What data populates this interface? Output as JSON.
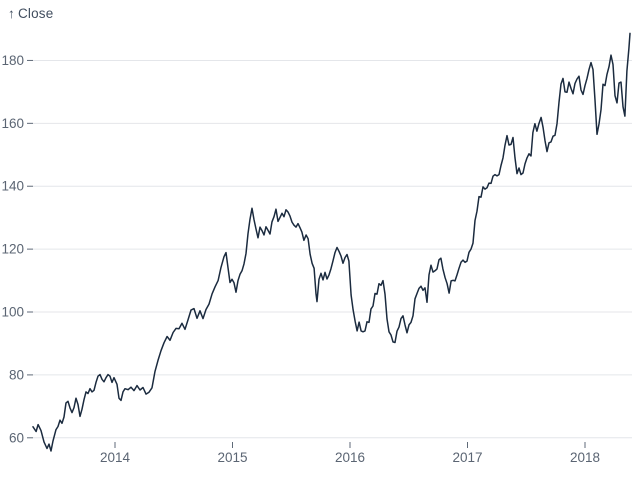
{
  "colors": {
    "background": "#ffffff",
    "line": "#1b2b3f",
    "grid": "#e4e6ea",
    "tick_mark": "#5f6a78",
    "tick_text": "#5b6573",
    "axis_title_text": "#414e5f"
  },
  "chart_data": {
    "type": "line",
    "title": "",
    "ylabel_arrow": "↑",
    "ylabel_text": "Close",
    "series_name": "Close",
    "xlabel": "",
    "legend": "none",
    "grid": "horizontal",
    "xlim": [
      2013.302,
      2018.383
    ],
    "ylim": [
      55.8,
      190.0
    ],
    "x_ticks": [
      2014,
      2015,
      2016,
      2017,
      2018
    ],
    "y_ticks": [
      60,
      80,
      100,
      120,
      140,
      160,
      180
    ],
    "points": [
      [
        2013.302,
        63.5
      ],
      [
        2013.328,
        62.0
      ],
      [
        2013.345,
        64.2
      ],
      [
        2013.37,
        62.3
      ],
      [
        2013.396,
        58.7
      ],
      [
        2013.421,
        56.6
      ],
      [
        2013.438,
        58.0
      ],
      [
        2013.455,
        55.8
      ],
      [
        2013.472,
        59.0
      ],
      [
        2013.498,
        62.6
      ],
      [
        2013.515,
        63.6
      ],
      [
        2013.532,
        65.6
      ],
      [
        2013.549,
        64.6
      ],
      [
        2013.566,
        66.6
      ],
      [
        2013.583,
        71.1
      ],
      [
        2013.6,
        71.6
      ],
      [
        2013.617,
        69.5
      ],
      [
        2013.634,
        68.0
      ],
      [
        2013.651,
        69.6
      ],
      [
        2013.668,
        72.6
      ],
      [
        2013.685,
        70.6
      ],
      [
        2013.702,
        66.8
      ],
      [
        2013.719,
        69.1
      ],
      [
        2013.736,
        72.1
      ],
      [
        2013.753,
        74.6
      ],
      [
        2013.77,
        74.1
      ],
      [
        2013.787,
        75.6
      ],
      [
        2013.804,
        74.6
      ],
      [
        2013.821,
        75.1
      ],
      [
        2013.838,
        77.6
      ],
      [
        2013.855,
        79.6
      ],
      [
        2013.872,
        80.1
      ],
      [
        2013.889,
        78.6
      ],
      [
        2013.906,
        77.8
      ],
      [
        2013.923,
        79.1
      ],
      [
        2013.94,
        80.1
      ],
      [
        2013.957,
        79.6
      ],
      [
        2013.974,
        77.6
      ],
      [
        2013.991,
        79.1
      ],
      [
        2014.017,
        77.0
      ],
      [
        2014.034,
        72.6
      ],
      [
        2014.051,
        71.9
      ],
      [
        2014.068,
        74.6
      ],
      [
        2014.085,
        75.6
      ],
      [
        2014.111,
        75.3
      ],
      [
        2014.136,
        76.1
      ],
      [
        2014.162,
        75.0
      ],
      [
        2014.187,
        76.6
      ],
      [
        2014.213,
        75.2
      ],
      [
        2014.238,
        76.0
      ],
      [
        2014.264,
        73.9
      ],
      [
        2014.289,
        74.5
      ],
      [
        2014.315,
        75.9
      ],
      [
        2014.34,
        81.1
      ],
      [
        2014.366,
        84.6
      ],
      [
        2014.391,
        87.7
      ],
      [
        2014.417,
        90.2
      ],
      [
        2014.443,
        92.2
      ],
      [
        2014.468,
        91.0
      ],
      [
        2014.494,
        93.5
      ],
      [
        2014.519,
        94.8
      ],
      [
        2014.545,
        94.7
      ],
      [
        2014.57,
        96.4
      ],
      [
        2014.596,
        94.5
      ],
      [
        2014.621,
        97.5
      ],
      [
        2014.647,
        100.6
      ],
      [
        2014.672,
        101.1
      ],
      [
        2014.698,
        98.0
      ],
      [
        2014.723,
        100.4
      ],
      [
        2014.749,
        97.9
      ],
      [
        2014.774,
        100.8
      ],
      [
        2014.8,
        102.5
      ],
      [
        2014.826,
        105.8
      ],
      [
        2014.851,
        108.0
      ],
      [
        2014.877,
        110.0
      ],
      [
        2014.902,
        114.2
      ],
      [
        2014.928,
        117.6
      ],
      [
        2014.945,
        118.9
      ],
      [
        2014.962,
        114.1
      ],
      [
        2014.979,
        109.4
      ],
      [
        2014.996,
        110.4
      ],
      [
        2015.013,
        109.3
      ],
      [
        2015.03,
        106.3
      ],
      [
        2015.047,
        110.0
      ],
      [
        2015.064,
        112.0
      ],
      [
        2015.081,
        113.1
      ],
      [
        2015.098,
        115.3
      ],
      [
        2015.115,
        118.6
      ],
      [
        2015.132,
        124.9
      ],
      [
        2015.149,
        129.5
      ],
      [
        2015.166,
        133.0
      ],
      [
        2015.183,
        129.4
      ],
      [
        2015.2,
        126.4
      ],
      [
        2015.217,
        123.6
      ],
      [
        2015.234,
        127.0
      ],
      [
        2015.251,
        125.9
      ],
      [
        2015.268,
        124.5
      ],
      [
        2015.285,
        127.1
      ],
      [
        2015.302,
        126.0
      ],
      [
        2015.319,
        124.8
      ],
      [
        2015.336,
        128.7
      ],
      [
        2015.353,
        130.3
      ],
      [
        2015.37,
        132.7
      ],
      [
        2015.387,
        128.8
      ],
      [
        2015.404,
        130.1
      ],
      [
        2015.421,
        131.4
      ],
      [
        2015.438,
        130.3
      ],
      [
        2015.455,
        132.5
      ],
      [
        2015.472,
        131.8
      ],
      [
        2015.489,
        130.5
      ],
      [
        2015.506,
        128.6
      ],
      [
        2015.523,
        127.6
      ],
      [
        2015.54,
        127.0
      ],
      [
        2015.557,
        128.1
      ],
      [
        2015.574,
        126.8
      ],
      [
        2015.591,
        125.4
      ],
      [
        2015.608,
        122.8
      ],
      [
        2015.626,
        124.5
      ],
      [
        2015.643,
        123.3
      ],
      [
        2015.66,
        118.4
      ],
      [
        2015.677,
        115.5
      ],
      [
        2015.694,
        113.9
      ],
      [
        2015.711,
        105.8
      ],
      [
        2015.719,
        103.3
      ],
      [
        2015.736,
        110.4
      ],
      [
        2015.753,
        112.3
      ],
      [
        2015.77,
        110.2
      ],
      [
        2015.787,
        112.6
      ],
      [
        2015.804,
        110.5
      ],
      [
        2015.821,
        111.8
      ],
      [
        2015.838,
        113.8
      ],
      [
        2015.855,
        116.3
      ],
      [
        2015.872,
        118.9
      ],
      [
        2015.889,
        120.5
      ],
      [
        2015.906,
        119.3
      ],
      [
        2015.923,
        117.8
      ],
      [
        2015.94,
        115.5
      ],
      [
        2015.957,
        117.3
      ],
      [
        2015.974,
        118.3
      ],
      [
        2015.991,
        116.2
      ],
      [
        2016.009,
        105.4
      ],
      [
        2016.026,
        100.7
      ],
      [
        2016.043,
        97.1
      ],
      [
        2016.06,
        94.0
      ],
      [
        2016.077,
        96.8
      ],
      [
        2016.094,
        94.0
      ],
      [
        2016.111,
        93.7
      ],
      [
        2016.128,
        94.0
      ],
      [
        2016.145,
        96.9
      ],
      [
        2016.162,
        96.7
      ],
      [
        2016.179,
        101.0
      ],
      [
        2016.196,
        101.9
      ],
      [
        2016.213,
        105.9
      ],
      [
        2016.23,
        105.7
      ],
      [
        2016.247,
        109.0
      ],
      [
        2016.264,
        108.5
      ],
      [
        2016.281,
        110.0
      ],
      [
        2016.298,
        105.7
      ],
      [
        2016.315,
        97.8
      ],
      [
        2016.332,
        93.7
      ],
      [
        2016.349,
        92.7
      ],
      [
        2016.366,
        90.5
      ],
      [
        2016.383,
        90.3
      ],
      [
        2016.4,
        93.9
      ],
      [
        2016.417,
        95.2
      ],
      [
        2016.434,
        97.9
      ],
      [
        2016.451,
        98.8
      ],
      [
        2016.468,
        95.9
      ],
      [
        2016.485,
        93.4
      ],
      [
        2016.502,
        95.9
      ],
      [
        2016.519,
        96.7
      ],
      [
        2016.536,
        98.8
      ],
      [
        2016.553,
        104.2
      ],
      [
        2016.57,
        105.9
      ],
      [
        2016.587,
        107.5
      ],
      [
        2016.604,
        108.2
      ],
      [
        2016.621,
        106.9
      ],
      [
        2016.638,
        107.7
      ],
      [
        2016.655,
        103.1
      ],
      [
        2016.672,
        111.8
      ],
      [
        2016.689,
        114.9
      ],
      [
        2016.706,
        112.7
      ],
      [
        2016.723,
        113.1
      ],
      [
        2016.74,
        113.7
      ],
      [
        2016.757,
        116.6
      ],
      [
        2016.774,
        117.1
      ],
      [
        2016.791,
        113.7
      ],
      [
        2016.809,
        110.9
      ],
      [
        2016.826,
        109.0
      ],
      [
        2016.843,
        106.0
      ],
      [
        2016.86,
        109.9
      ],
      [
        2016.877,
        110.1
      ],
      [
        2016.894,
        109.9
      ],
      [
        2016.911,
        111.8
      ],
      [
        2016.928,
        113.9
      ],
      [
        2016.945,
        115.8
      ],
      [
        2016.962,
        116.5
      ],
      [
        2016.979,
        115.8
      ],
      [
        2016.996,
        116.2
      ],
      [
        2017.013,
        119.0
      ],
      [
        2017.03,
        120.0
      ],
      [
        2017.047,
        121.9
      ],
      [
        2017.064,
        129.1
      ],
      [
        2017.081,
        132.1
      ],
      [
        2017.098,
        136.7
      ],
      [
        2017.115,
        136.5
      ],
      [
        2017.132,
        139.8
      ],
      [
        2017.149,
        139.1
      ],
      [
        2017.166,
        139.5
      ],
      [
        2017.183,
        141.0
      ],
      [
        2017.2,
        140.9
      ],
      [
        2017.217,
        143.2
      ],
      [
        2017.234,
        143.7
      ],
      [
        2017.251,
        143.3
      ],
      [
        2017.268,
        143.7
      ],
      [
        2017.285,
        146.6
      ],
      [
        2017.302,
        149.0
      ],
      [
        2017.319,
        153.0
      ],
      [
        2017.336,
        156.1
      ],
      [
        2017.353,
        153.1
      ],
      [
        2017.37,
        153.3
      ],
      [
        2017.387,
        155.5
      ],
      [
        2017.404,
        149.0
      ],
      [
        2017.421,
        144.0
      ],
      [
        2017.438,
        145.8
      ],
      [
        2017.455,
        143.7
      ],
      [
        2017.472,
        144.2
      ],
      [
        2017.489,
        147.1
      ],
      [
        2017.506,
        149.0
      ],
      [
        2017.523,
        150.3
      ],
      [
        2017.54,
        149.6
      ],
      [
        2017.557,
        157.1
      ],
      [
        2017.574,
        159.9
      ],
      [
        2017.591,
        157.5
      ],
      [
        2017.608,
        159.9
      ],
      [
        2017.626,
        161.9
      ],
      [
        2017.643,
        158.6
      ],
      [
        2017.66,
        154.5
      ],
      [
        2017.677,
        151.0
      ],
      [
        2017.694,
        153.8
      ],
      [
        2017.711,
        154.1
      ],
      [
        2017.728,
        155.9
      ],
      [
        2017.745,
        156.2
      ],
      [
        2017.762,
        159.9
      ],
      [
        2017.779,
        166.7
      ],
      [
        2017.796,
        172.5
      ],
      [
        2017.813,
        174.3
      ],
      [
        2017.83,
        170.0
      ],
      [
        2017.847,
        169.9
      ],
      [
        2017.864,
        173.1
      ],
      [
        2017.881,
        171.1
      ],
      [
        2017.898,
        169.4
      ],
      [
        2017.915,
        172.7
      ],
      [
        2017.932,
        174.1
      ],
      [
        2017.949,
        175.0
      ],
      [
        2017.966,
        170.6
      ],
      [
        2017.983,
        169.2
      ],
      [
        2018.0,
        172.0
      ],
      [
        2018.017,
        174.3
      ],
      [
        2018.034,
        177.1
      ],
      [
        2018.051,
        179.3
      ],
      [
        2018.068,
        177.1
      ],
      [
        2018.085,
        167.4
      ],
      [
        2018.102,
        156.5
      ],
      [
        2018.119,
        159.8
      ],
      [
        2018.136,
        164.3
      ],
      [
        2018.153,
        172.4
      ],
      [
        2018.17,
        172.0
      ],
      [
        2018.187,
        175.6
      ],
      [
        2018.204,
        178.0
      ],
      [
        2018.221,
        181.7
      ],
      [
        2018.238,
        178.7
      ],
      [
        2018.255,
        168.8
      ],
      [
        2018.272,
        166.5
      ],
      [
        2018.289,
        172.8
      ],
      [
        2018.306,
        173.1
      ],
      [
        2018.323,
        165.3
      ],
      [
        2018.34,
        162.3
      ],
      [
        2018.357,
        176.6
      ],
      [
        2018.374,
        183.8
      ],
      [
        2018.383,
        188.6
      ]
    ]
  }
}
